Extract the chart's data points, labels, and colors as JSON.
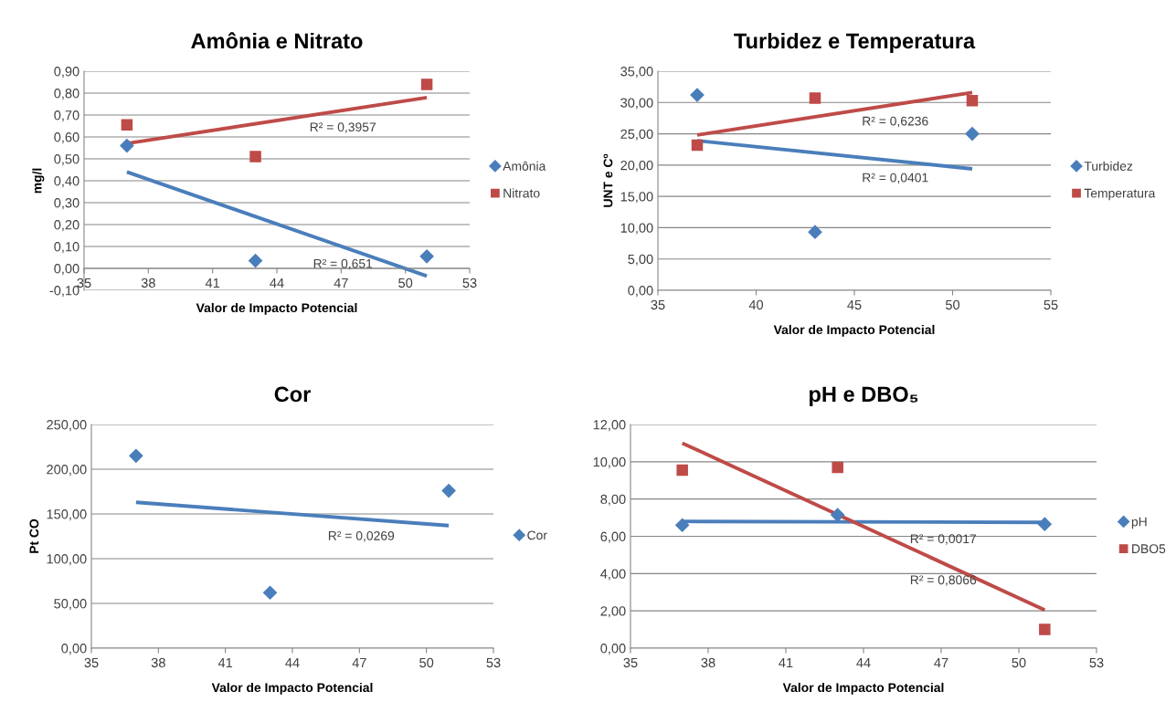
{
  "chart_data": [
    {
      "type": "scatter",
      "title": "Amônia e Nitrato",
      "xlabel": "Valor de Impacto Potencial",
      "ylabel": "mg/l",
      "grid": "y",
      "legend": "right",
      "xlim": [
        35,
        53
      ],
      "xticks": [
        35,
        38,
        41,
        44,
        47,
        50,
        53
      ],
      "ylim": [
        -0.1,
        0.9
      ],
      "yticks": [
        {
          "value": -0.1,
          "label": "-0,10"
        },
        {
          "value": 0,
          "label": "0,00"
        },
        {
          "value": 0.1,
          "label": "0,10"
        },
        {
          "value": 0.2,
          "label": "0,20"
        },
        {
          "value": 0.3,
          "label": "0,30"
        },
        {
          "value": 0.4,
          "label": "0,40"
        },
        {
          "value": 0.5,
          "label": "0,50"
        },
        {
          "value": 0.6,
          "label": "0,60"
        },
        {
          "value": 0.7,
          "label": "0,70"
        },
        {
          "value": 0.8,
          "label": "0,80"
        },
        {
          "value": 0.9,
          "label": "0,90"
        }
      ],
      "series": [
        {
          "name": "Amônia",
          "type": "scatter",
          "marker": "diamond",
          "color": "#4a7ebb",
          "x": [
            37,
            43,
            51
          ],
          "values": [
            0.56,
            0.035,
            0.055
          ]
        },
        {
          "name": "Nitrato",
          "type": "scatter",
          "marker": "square",
          "color": "#be4b48",
          "x": [
            37,
            43,
            51
          ],
          "values": [
            0.655,
            0.51,
            0.84
          ]
        },
        {
          "type": "line",
          "marker": "none",
          "color": "#4a7ebb",
          "x": [
            37,
            51
          ],
          "values": [
            0.44,
            -0.035
          ]
        },
        {
          "type": "line",
          "marker": "none",
          "color": "#be4b48",
          "x": [
            37,
            51
          ],
          "values": [
            0.57,
            0.78
          ]
        }
      ],
      "annotations": [
        "R² = 0,651",
        "R² = 0,3957"
      ]
    },
    {
      "type": "scatter",
      "title": "Turbidez e Temperatura",
      "xlabel": "Valor de Impacto Potencial",
      "ylabel": "UNT e Cº",
      "grid": "y",
      "legend": "right",
      "xlim": [
        35,
        55
      ],
      "xticks": [
        35,
        40,
        45,
        50,
        55
      ],
      "ylim": [
        0,
        35
      ],
      "yticks": [
        {
          "value": 0,
          "label": "0,00"
        },
        {
          "value": 5,
          "label": "5,00"
        },
        {
          "value": 10,
          "label": "10,00"
        },
        {
          "value": 15,
          "label": "15,00"
        },
        {
          "value": 20,
          "label": "20,00"
        },
        {
          "value": 25,
          "label": "25,00"
        },
        {
          "value": 30,
          "label": "30,00"
        },
        {
          "value": 35,
          "label": "35,00"
        }
      ],
      "series": [
        {
          "name": "Turbidez",
          "type": "scatter",
          "marker": "diamond",
          "color": "#4a7ebb",
          "x": [
            37,
            43,
            51
          ],
          "values": [
            31.2,
            9.3,
            25.0
          ]
        },
        {
          "name": "Temperatura",
          "type": "scatter",
          "marker": "square",
          "color": "#be4b48",
          "x": [
            37,
            43,
            51
          ],
          "values": [
            23.2,
            30.7,
            30.3
          ]
        },
        {
          "type": "line",
          "marker": "none",
          "color": "#4a7ebb",
          "x": [
            37,
            51
          ],
          "values": [
            23.9,
            19.4
          ]
        },
        {
          "type": "line",
          "marker": "none",
          "color": "#be4b48",
          "x": [
            37,
            51
          ],
          "values": [
            24.8,
            31.6
          ]
        }
      ],
      "annotations": [
        "R² = 0,0401",
        "R² = 0,6236"
      ]
    },
    {
      "type": "scatter",
      "title": "Cor",
      "xlabel": "Valor de Impacto Potencial",
      "ylabel": "Pt CO",
      "grid": "y",
      "legend": "right",
      "xlim": [
        35,
        53
      ],
      "xticks": [
        35,
        38,
        41,
        44,
        47,
        50,
        53
      ],
      "ylim": [
        0,
        250
      ],
      "yticks": [
        {
          "value": 0,
          "label": "0,00"
        },
        {
          "value": 50,
          "label": "50,00"
        },
        {
          "value": 100,
          "label": "100,00"
        },
        {
          "value": 150,
          "label": "150,00"
        },
        {
          "value": 200,
          "label": "200,00"
        },
        {
          "value": 250,
          "label": "250,00"
        }
      ],
      "series": [
        {
          "name": "Cor",
          "type": "scatter",
          "marker": "diamond",
          "color": "#4a7ebb",
          "x": [
            37,
            43,
            51
          ],
          "values": [
            215,
            62,
            176
          ]
        },
        {
          "type": "line",
          "marker": "none",
          "color": "#4a7ebb",
          "x": [
            37,
            51
          ],
          "values": [
            163,
            137
          ]
        }
      ],
      "annotations": [
        "R² = 0,0269"
      ]
    },
    {
      "type": "scatter",
      "title": "pH e DBO₅",
      "xlabel": "Valor de Impacto Potencial",
      "grid": "y",
      "legend": "right",
      "xlim": [
        35,
        53
      ],
      "xticks": [
        35,
        38,
        41,
        44,
        47,
        50,
        53
      ],
      "ylim": [
        0,
        12
      ],
      "yticks": [
        {
          "value": 0,
          "label": "0,00"
        },
        {
          "value": 2,
          "label": "2,00"
        },
        {
          "value": 4,
          "label": "4,00"
        },
        {
          "value": 6,
          "label": "6,00"
        },
        {
          "value": 8,
          "label": "8,00"
        },
        {
          "value": 10,
          "label": "10,00"
        },
        {
          "value": 12,
          "label": "12,00"
        }
      ],
      "series": [
        {
          "name": "pH",
          "type": "scatter",
          "marker": "diamond",
          "color": "#4a7ebb",
          "x": [
            37,
            43,
            51
          ],
          "values": [
            6.6,
            7.15,
            6.65
          ]
        },
        {
          "name": "DBO5",
          "type": "scatter",
          "marker": "square",
          "color": "#be4b48",
          "x": [
            37,
            43,
            51
          ],
          "values": [
            9.55,
            9.7,
            1.0
          ]
        },
        {
          "type": "line",
          "marker": "none",
          "color": "#4a7ebb",
          "x": [
            37,
            51
          ],
          "values": [
            6.8,
            6.75
          ]
        },
        {
          "type": "line",
          "marker": "none",
          "color": "#be4b48",
          "x": [
            37,
            51
          ],
          "values": [
            11.0,
            2.05
          ]
        }
      ],
      "annotations": [
        "R² = 0,0017",
        "R² = 0,8066"
      ]
    }
  ]
}
